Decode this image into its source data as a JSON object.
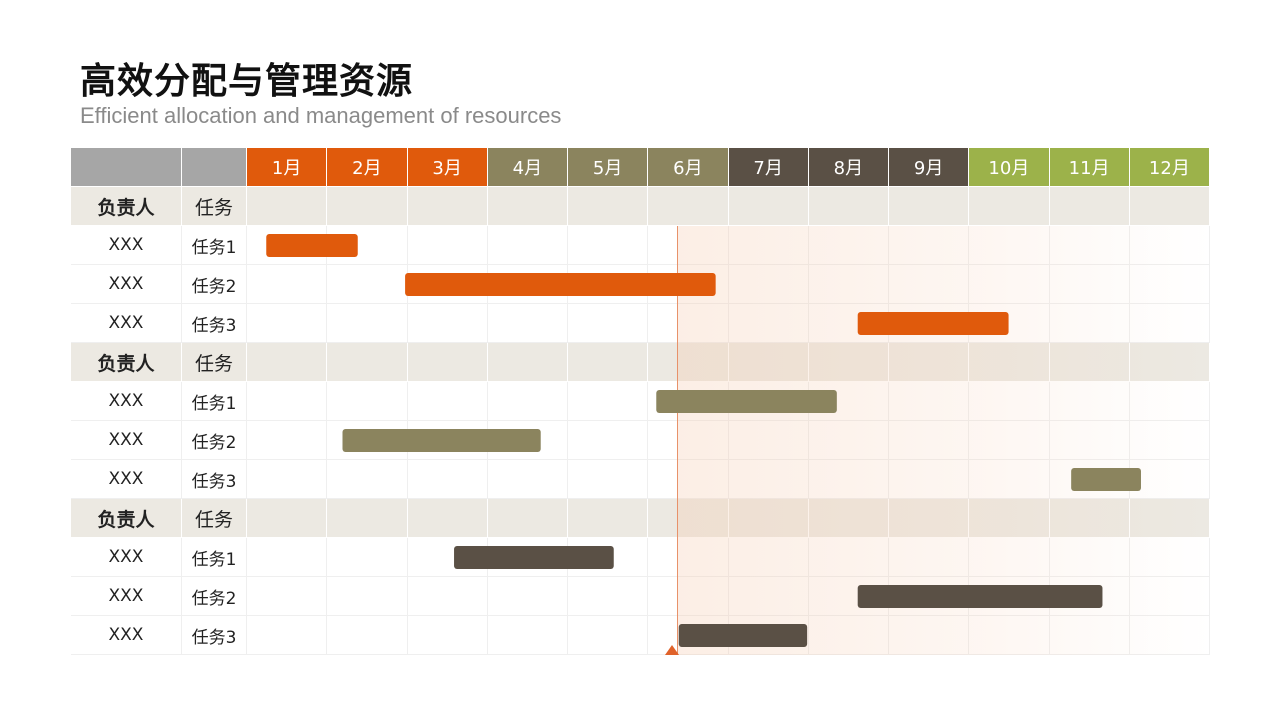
{
  "title": "高效分配与管理资源",
  "subtitle": "Efficient allocation and management of resources",
  "colors": {
    "orange": "#e05a0c",
    "olive": "#8b845e",
    "dark": "#5a5045",
    "green": "#9cb24a",
    "header_gray": "#a6a6a6"
  },
  "chart_data": {
    "type": "gantt",
    "months": [
      {
        "label": "1月",
        "color": "#e05a0c"
      },
      {
        "label": "2月",
        "color": "#e05a0c"
      },
      {
        "label": "3月",
        "color": "#e05a0c"
      },
      {
        "label": "4月",
        "color": "#8b845e"
      },
      {
        "label": "5月",
        "color": "#8b845e"
      },
      {
        "label": "6月",
        "color": "#8b845e"
      },
      {
        "label": "7月",
        "color": "#5a5045"
      },
      {
        "label": "8月",
        "color": "#5a5045"
      },
      {
        "label": "9月",
        "color": "#5a5045"
      },
      {
        "label": "10月",
        "color": "#9cb24a"
      },
      {
        "label": "11月",
        "color": "#9cb24a"
      },
      {
        "label": "12月",
        "color": "#9cb24a"
      }
    ],
    "current_month": 6.36,
    "groups": [
      {
        "owner_label": "负责人",
        "task_label": "任务",
        "color": "#e05a0c",
        "tasks": [
          {
            "owner": "XXX",
            "task": "任务1",
            "start": 1.24,
            "end": 2.38
          },
          {
            "owner": "XXX",
            "task": "任务2",
            "start": 2.97,
            "end": 6.84
          },
          {
            "owner": "XXX",
            "task": "任务3",
            "start": 8.61,
            "end": 10.49
          }
        ]
      },
      {
        "owner_label": "负责人",
        "task_label": "任务",
        "color": "#8b845e",
        "tasks": [
          {
            "owner": "XXX",
            "task": "任务1",
            "start": 6.1,
            "end": 8.35
          },
          {
            "owner": "XXX",
            "task": "任务2",
            "start": 2.19,
            "end": 4.66
          },
          {
            "owner": "XXX",
            "task": "任务3",
            "start": 11.27,
            "end": 12.14
          }
        ]
      },
      {
        "owner_label": "负责人",
        "task_label": "任务",
        "color": "#5a5045",
        "tasks": [
          {
            "owner": "XXX",
            "task": "任务1",
            "start": 3.58,
            "end": 5.57
          },
          {
            "owner": "XXX",
            "task": "任务2",
            "start": 8.61,
            "end": 11.66
          },
          {
            "owner": "XXX",
            "task": "任务3",
            "start": 6.38,
            "end": 7.98
          }
        ]
      }
    ]
  }
}
